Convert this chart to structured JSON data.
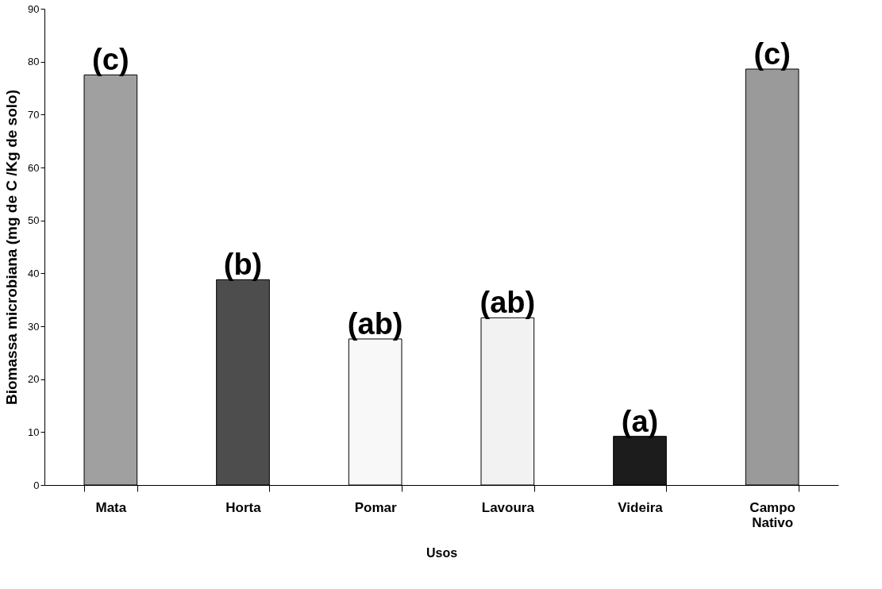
{
  "chart_data": {
    "type": "bar",
    "xlabel": "Usos",
    "ylabel": "Biomassa microbiana (mg de C /Kg de solo)",
    "categories": [
      "Mata",
      "Horta",
      "Pomar",
      "Lavoura",
      "Videira",
      "Campo Nativo"
    ],
    "values": [
      77.5,
      38.8,
      27.6,
      31.6,
      9.2,
      78.6
    ],
    "colors": [
      "#a0a0a0",
      "#4d4d4d",
      "#f8f8f8",
      "#f2f2f2",
      "#1c1c1c",
      "#9a9a9a"
    ],
    "ylim": [
      0,
      90
    ],
    "yticks": [
      0,
      10,
      20,
      30,
      40,
      50,
      60,
      70,
      80,
      90
    ],
    "grid": false,
    "annotations": [
      {
        "text": "(c)",
        "x": "Mata",
        "y": 77.5
      },
      {
        "text": "(b)",
        "x": "Horta",
        "y": 38.8
      },
      {
        "text": "(ab)",
        "x": "Pomar",
        "y": 27.6
      },
      {
        "text": "(ab)",
        "x": "Lavoura",
        "y": 31.6
      },
      {
        "text": "(a)",
        "x": "Videira",
        "y": 9.2
      },
      {
        "text": "(c)",
        "x": "Campo Nativo",
        "y": 78.6
      }
    ]
  }
}
